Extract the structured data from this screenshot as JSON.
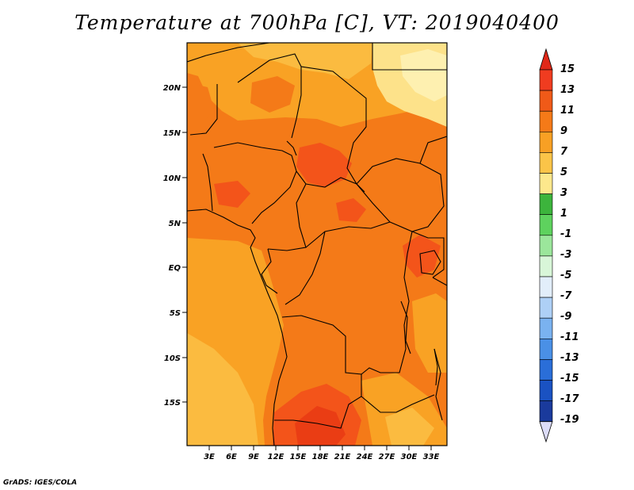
{
  "title": "Temperature at 700hPa [C], VT: 2019040400",
  "credit": "GrADS: IGES/COLA",
  "map": {
    "lat_ticks": [
      "20N",
      "15N",
      "10N",
      "5N",
      "EQ",
      "5S",
      "10S",
      "15S"
    ],
    "lon_ticks": [
      "3E",
      "6E",
      "9E",
      "12E",
      "15E",
      "18E",
      "21E",
      "24E",
      "27E",
      "30E",
      "33E"
    ]
  },
  "colorbar": {
    "labels": [
      "15",
      "13",
      "11",
      "9",
      "7",
      "5",
      "3",
      "1",
      "-1",
      "-3",
      "-5",
      "-7",
      "-9",
      "-11",
      "-13",
      "-15",
      "-17",
      "-19"
    ],
    "colors": [
      "#f03c20",
      "#f05a18",
      "#f57a18",
      "#f8a024",
      "#fbc448",
      "#fde88c",
      "#3cb43c",
      "#5ed25e",
      "#9be69b",
      "#d8f6d8",
      "#e2eefa",
      "#aed0f6",
      "#7ab2f0",
      "#4a90e6",
      "#2a6ed8",
      "#1a52c2",
      "#1a3a9c",
      "#101670"
    ],
    "top_arrow_color": "#e02818",
    "bottom_arrow_color": "#dcdcf8"
  },
  "field_colors": {
    "c7": "#fbbb40",
    "c9": "#f9a224",
    "c11": "#f47a18",
    "c13": "#f3541a",
    "c15": "#ea3d14",
    "c5": "#fde28a",
    "c5b": "#fef0b0"
  }
}
